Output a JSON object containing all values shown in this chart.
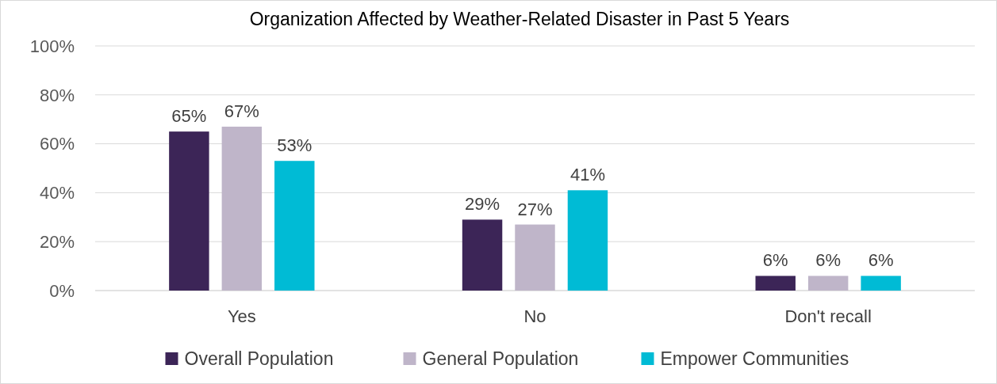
{
  "chart_data": {
    "type": "bar",
    "title": "Organization Affected by Weather-Related Disaster in Past 5 Years",
    "categories": [
      "Yes",
      "No",
      "Don't recall"
    ],
    "series": [
      {
        "name": "Overall Population",
        "color": "#3c2557",
        "values": [
          65,
          29,
          6
        ],
        "value_labels": [
          "65%",
          "29%",
          "6%"
        ]
      },
      {
        "name": "General Population",
        "color": "#bfb5c9",
        "values": [
          67,
          27,
          6
        ],
        "value_labels": [
          "67%",
          "27%",
          "6%"
        ]
      },
      {
        "name": "Empower Communities",
        "color": "#00bbd5",
        "values": [
          53,
          41,
          6
        ],
        "value_labels": [
          "53%",
          "41%",
          "6%"
        ]
      }
    ],
    "ylim": [
      0,
      100
    ],
    "yticks": [
      {
        "value": 0,
        "label": "0%"
      },
      {
        "value": 20,
        "label": "20%"
      },
      {
        "value": 40,
        "label": "40%"
      },
      {
        "value": 60,
        "label": "60%"
      },
      {
        "value": 80,
        "label": "80%"
      },
      {
        "value": 100,
        "label": "100%"
      }
    ],
    "grid": "y",
    "legend": "bottom"
  }
}
